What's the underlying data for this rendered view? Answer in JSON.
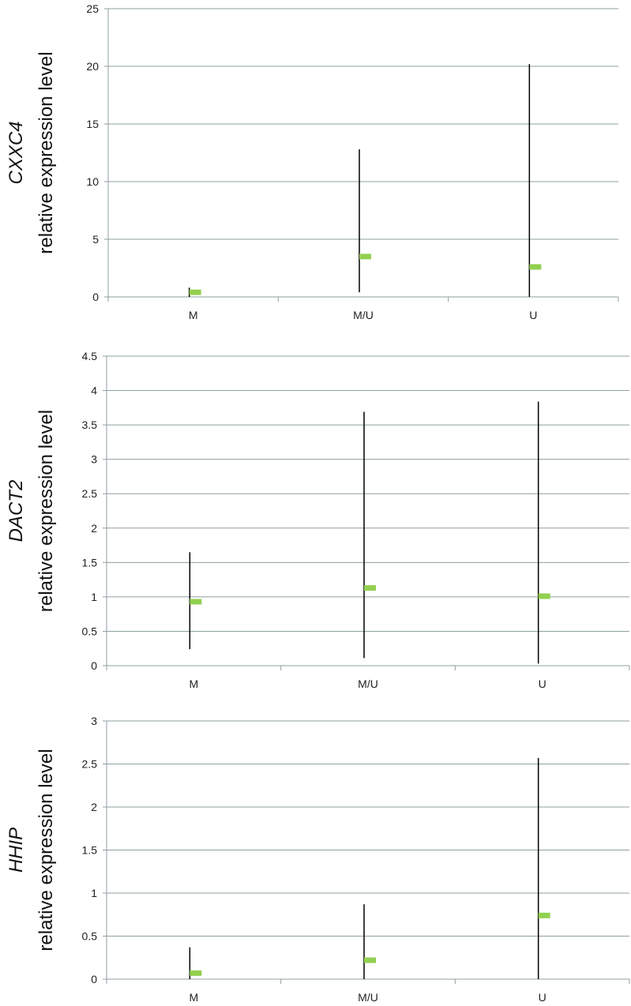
{
  "colors": {
    "grid": "#8f9fa0",
    "axis": "#8f9fa0",
    "range_line": "#000000",
    "median_marker": "#92d050"
  },
  "chart_data": [
    {
      "type": "scatter",
      "ylabel_gene": "CXXC4",
      "ylabel": "relative expression level",
      "categories": [
        "M",
        "M/U",
        "U"
      ],
      "ylim": [
        0,
        25
      ],
      "yticks": [
        0,
        5,
        10,
        15,
        20,
        25
      ],
      "ytick_labels": [
        "0",
        "5",
        "10",
        "15",
        "20",
        "25"
      ],
      "grid": true,
      "series": [
        {
          "values": [
            0.4,
            3.5,
            2.6
          ]
        }
      ],
      "ranges": [
        [
          0,
          0.8
        ],
        [
          0.4,
          12.8
        ],
        [
          0,
          20.2
        ]
      ]
    },
    {
      "type": "scatter",
      "ylabel_gene": "DACT2",
      "ylabel": "relative expression level",
      "categories": [
        "M",
        "M/U",
        "U"
      ],
      "ylim": [
        0,
        4.5
      ],
      "yticks": [
        0,
        0.5,
        1,
        1.5,
        2,
        2.5,
        3,
        3.5,
        4,
        4.5
      ],
      "ytick_labels": [
        "0",
        "0.5",
        "1",
        "1.5",
        "2",
        "2.5",
        "3",
        "3.5",
        "4",
        "4.5"
      ],
      "grid": true,
      "series": [
        {
          "values": [
            0.93,
            1.13,
            1.01
          ]
        }
      ],
      "ranges": [
        [
          0.24,
          1.65
        ],
        [
          0.11,
          3.69
        ],
        [
          0.03,
          3.84
        ]
      ]
    },
    {
      "type": "scatter",
      "ylabel_gene": "HHIP",
      "ylabel": "relative expression level",
      "categories": [
        "M",
        "M/U",
        "U"
      ],
      "ylim": [
        0,
        3
      ],
      "yticks": [
        0,
        0.5,
        1,
        1.5,
        2,
        2.5,
        3
      ],
      "ytick_labels": [
        "0",
        "0.5",
        "1",
        "1.5",
        "2",
        "2.5",
        "3"
      ],
      "grid": true,
      "series": [
        {
          "values": [
            0.07,
            0.22,
            0.74
          ]
        }
      ],
      "ranges": [
        [
          0,
          0.37
        ],
        [
          0,
          0.87
        ],
        [
          0,
          2.57
        ]
      ]
    }
  ]
}
